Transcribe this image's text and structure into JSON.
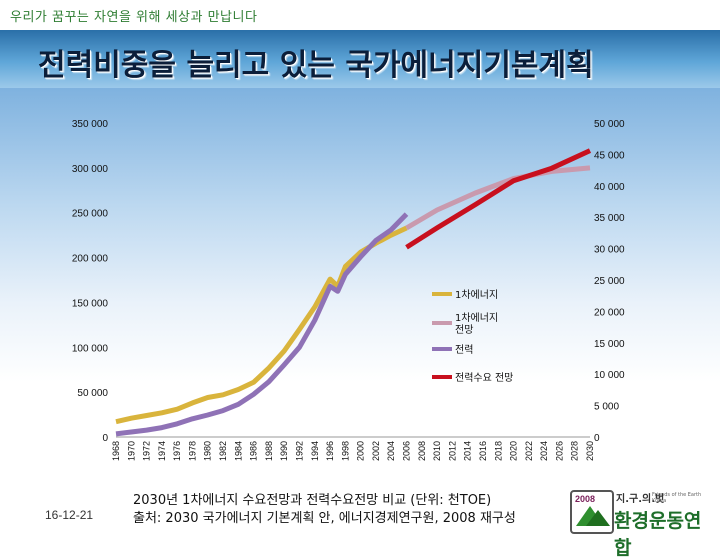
{
  "header": {
    "tagline": "우리가 꿈꾸는 자연을 위해 세상과 만납니다",
    "title": "전력비중을 늘리고 있는 국가에너지기본계획"
  },
  "footer": {
    "date": "16-12-21",
    "caption_line1": "2030년 1차에너지 수요전망과 전력수요전망 비교 (단위: 천TOE)",
    "caption_line2": "출처: 2030 국가에너지 기본계획 안, 에너지경제연구원, 2008 재구성"
  },
  "logo": {
    "year": "2008",
    "top_text": "지.구.의.벗",
    "small_text": "Friends of the Earth Korea",
    "name": "환경운동연합"
  },
  "colors": {
    "primary_energy": "#d9b43c",
    "primary_forecast": "#c99aae",
    "electricity": "#8f72b6",
    "electricity_forecast": "#c8101e"
  },
  "chart_data": {
    "type": "line",
    "x": [
      1968,
      1970,
      1972,
      1974,
      1976,
      1978,
      1980,
      1982,
      1984,
      1986,
      1988,
      1990,
      1992,
      1994,
      1996,
      1997,
      1998,
      2000,
      2002,
      2004,
      2006,
      2008,
      2010,
      2012,
      2014,
      2016,
      2018,
      2020,
      2022,
      2024,
      2026,
      2028,
      2030
    ],
    "x_tick_labels": [
      "1968",
      "1970",
      "1972",
      "1974",
      "1976",
      "1978",
      "1980",
      "1982",
      "1984",
      "1986",
      "1988",
      "1990",
      "1992",
      "1994",
      "1996",
      "1998",
      "2000",
      "2002",
      "2004",
      "2006",
      "2008",
      "2010",
      "2012",
      "2014",
      "2016",
      "2018",
      "2020",
      "2022",
      "2024",
      "2026",
      "2028",
      "2030"
    ],
    "left_axis": {
      "ylim": [
        0,
        350000
      ],
      "tick_labels": [
        "0",
        "50 000",
        "100 000",
        "150 000",
        "200 000",
        "250 000",
        "300 000",
        "350 000"
      ]
    },
    "right_axis": {
      "ylim": [
        0,
        50000
      ],
      "tick_labels": [
        "0",
        "5 000",
        "10 000",
        "15 000",
        "20 000",
        "25 000",
        "30 000",
        "35 000",
        "40 000",
        "45 000",
        "50 000"
      ]
    },
    "series": [
      {
        "name": "1차에너지",
        "axis": "left",
        "x": [
          1968,
          1970,
          1972,
          1974,
          1976,
          1978,
          1980,
          1982,
          1984,
          1986,
          1988,
          1990,
          1992,
          1994,
          1996,
          1997,
          1998,
          2000,
          2002,
          2004,
          2006
        ],
        "values": [
          17000,
          21000,
          24000,
          27000,
          31000,
          38000,
          44000,
          47000,
          53000,
          61000,
          77000,
          96000,
          120000,
          145000,
          176000,
          168000,
          190000,
          206000,
          216000,
          225000,
          233000
        ]
      },
      {
        "name": "1차에너지\n전망",
        "axis": "left",
        "x": [
          2006,
          2010,
          2015,
          2020,
          2025,
          2030
        ],
        "values": [
          233000,
          253000,
          272000,
          288000,
          296000,
          300000
        ]
      },
      {
        "name": "전력",
        "axis": "right",
        "x": [
          1968,
          1970,
          1972,
          1974,
          1976,
          1978,
          1980,
          1982,
          1984,
          1986,
          1988,
          1990,
          1992,
          1994,
          1996,
          1997,
          1998,
          2000,
          2002,
          2004,
          2006
        ],
        "values": [
          500,
          800,
          1100,
          1500,
          2100,
          2900,
          3500,
          4200,
          5200,
          6800,
          8800,
          11500,
          14300,
          18600,
          24000,
          23200,
          25900,
          28700,
          31300,
          33000,
          35500
        ]
      },
      {
        "name": "전력수요 전망",
        "axis": "right",
        "x": [
          2006,
          2010,
          2015,
          2020,
          2025,
          2030
        ],
        "values": [
          30200,
          33300,
          37000,
          40800,
          42800,
          45600
        ]
      }
    ],
    "legend": "center-right"
  }
}
